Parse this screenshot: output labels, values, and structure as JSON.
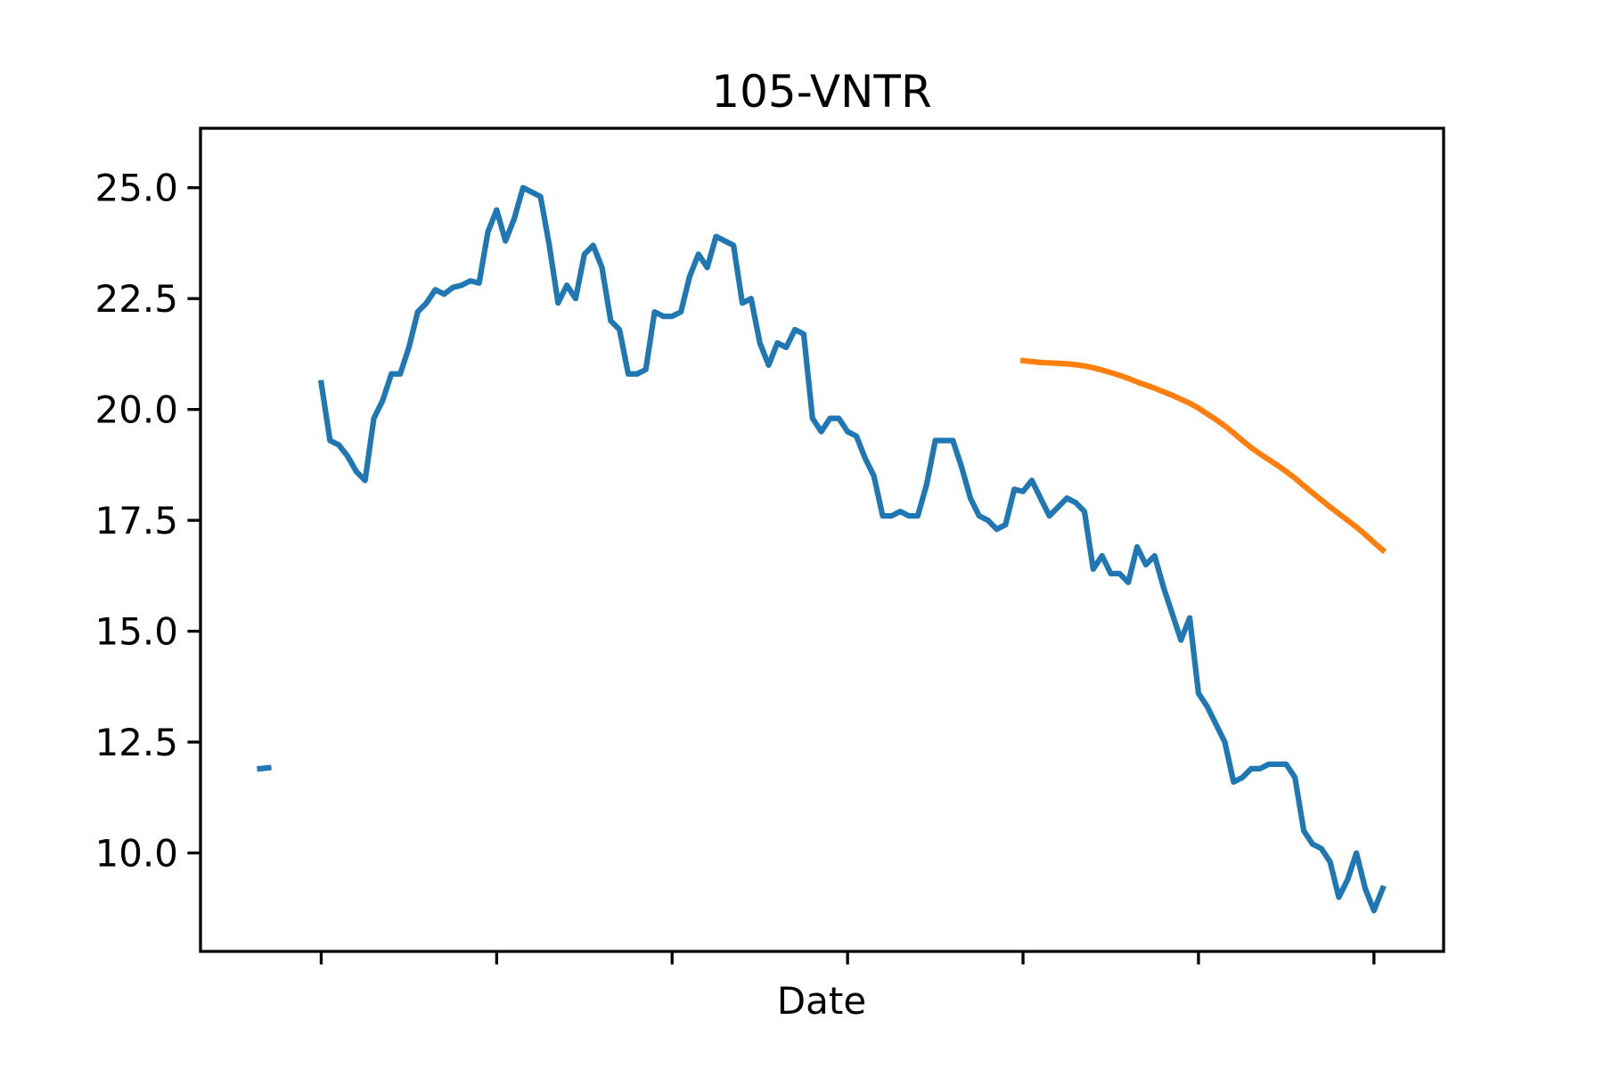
{
  "chart_data": {
    "type": "line",
    "title": "105-VNTR",
    "xlabel": "Date",
    "x": [
      -35,
      -30,
      -25,
      -20,
      -15,
      -10,
      -5,
      0,
      5,
      10,
      15,
      20,
      25,
      30,
      35,
      40,
      45,
      50,
      55,
      60,
      65,
      70,
      75,
      80,
      85,
      90,
      95,
      100,
      105,
      110,
      115,
      120,
      125,
      130,
      135,
      140,
      145,
      150,
      155,
      160,
      165,
      170,
      175,
      180,
      185,
      190,
      195,
      200,
      205,
      210,
      215,
      220,
      225,
      230,
      235,
      240,
      245,
      250,
      255,
      260,
      265,
      270,
      275,
      280,
      285,
      290,
      295,
      300,
      305,
      310,
      315,
      320,
      325,
      330,
      335,
      340,
      345,
      350,
      355,
      360,
      365,
      370,
      375,
      380,
      385,
      390,
      395,
      400,
      405,
      410,
      415,
      420,
      425,
      430,
      435,
      440,
      445,
      450,
      455,
      460,
      465,
      470,
      475,
      480,
      485,
      490,
      495,
      500,
      505,
      510,
      515,
      520,
      525,
      530,
      535,
      540,
      545,
      550,
      555,
      560,
      565,
      570,
      575,
      580,
      585,
      590,
      595,
      600,
      605
    ],
    "series": [
      {
        "color": "#1f77b4",
        "values": [
          11.9,
          11.92,
          null,
          null,
          null,
          null,
          null,
          20.6,
          19.3,
          19.2,
          18.95,
          18.6,
          18.4,
          19.8,
          20.2,
          20.8,
          20.8,
          21.4,
          22.2,
          22.4,
          22.7,
          22.6,
          22.75,
          22.8,
          22.9,
          22.85,
          24.0,
          24.5,
          23.8,
          24.3,
          25.0,
          24.9,
          24.8,
          23.7,
          22.4,
          22.8,
          22.5,
          23.5,
          23.7,
          23.2,
          22.0,
          21.8,
          20.8,
          20.8,
          20.9,
          22.2,
          22.1,
          22.1,
          22.2,
          23.0,
          23.5,
          23.2,
          23.9,
          23.8,
          23.7,
          22.4,
          22.5,
          21.5,
          21.0,
          21.5,
          21.4,
          21.8,
          21.7,
          19.8,
          19.5,
          19.8,
          19.8,
          19.5,
          19.4,
          18.9,
          18.5,
          17.6,
          17.6,
          17.7,
          17.6,
          17.6,
          18.3,
          19.3,
          19.3,
          19.3,
          18.7,
          18.0,
          17.6,
          17.5,
          17.3,
          17.4,
          18.2,
          18.15,
          18.4,
          18.0,
          17.6,
          17.8,
          18.0,
          17.9,
          17.7,
          16.4,
          16.7,
          16.3,
          16.3,
          16.1,
          16.9,
          16.5,
          16.7,
          16.0,
          15.4,
          14.8,
          15.3,
          13.6,
          13.3,
          12.9,
          12.5,
          11.6,
          11.7,
          11.9,
          11.9,
          12.0,
          12.0,
          12.0,
          11.7,
          10.5,
          10.2,
          10.1,
          9.8,
          9.0,
          9.4,
          10.0,
          9.2,
          8.7,
          9.2
        ]
      },
      {
        "color": "#ff7f0e",
        "values": [
          null,
          null,
          null,
          null,
          null,
          null,
          null,
          null,
          null,
          null,
          null,
          null,
          null,
          null,
          null,
          null,
          null,
          null,
          null,
          null,
          null,
          null,
          null,
          null,
          null,
          null,
          null,
          null,
          null,
          null,
          null,
          null,
          null,
          null,
          null,
          null,
          null,
          null,
          null,
          null,
          null,
          null,
          null,
          null,
          null,
          null,
          null,
          null,
          null,
          null,
          null,
          null,
          null,
          null,
          null,
          null,
          null,
          null,
          null,
          null,
          null,
          null,
          null,
          null,
          null,
          null,
          null,
          null,
          null,
          null,
          null,
          null,
          null,
          null,
          null,
          null,
          null,
          null,
          null,
          null,
          null,
          null,
          null,
          null,
          null,
          null,
          null,
          21.1,
          21.08,
          21.06,
          21.05,
          21.04,
          21.03,
          21.01,
          20.98,
          20.94,
          20.89,
          20.83,
          20.77,
          20.7,
          20.62,
          20.55,
          20.48,
          20.4,
          20.32,
          20.23,
          20.14,
          20.03,
          19.9,
          19.77,
          19.63,
          19.47,
          19.3,
          19.14,
          19.0,
          18.87,
          18.74,
          18.6,
          18.45,
          18.28,
          18.12,
          17.96,
          17.8,
          17.65,
          17.5,
          17.35,
          17.18,
          17.0,
          16.83
        ]
      }
    ],
    "xlim": [
      -68.8,
      639.7
    ],
    "xticks": [
      0,
      100,
      200,
      300,
      400,
      500,
      600
    ],
    "ylim": [
      7.78,
      26.34
    ],
    "yticks": [
      {
        "value": 10,
        "label": "10.0"
      },
      12.5,
      {
        "value": 15,
        "label": "15.0"
      },
      17.5,
      {
        "value": 20,
        "label": "20.0"
      },
      22.5,
      {
        "value": 25,
        "label": "25.0"
      }
    ],
    "grid": false
  }
}
